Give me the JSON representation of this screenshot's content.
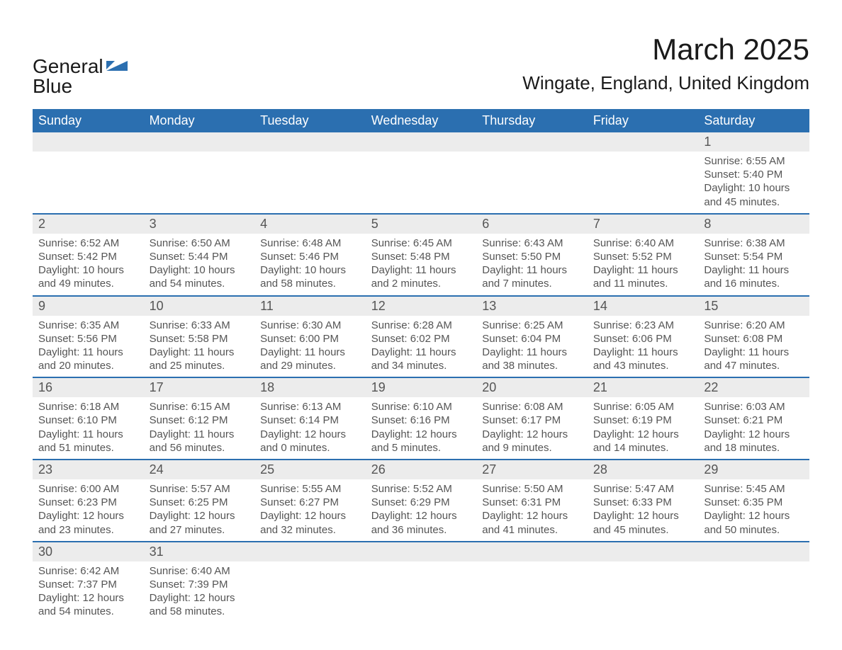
{
  "logo": {
    "word1": "General",
    "word2": "Blue",
    "shape_color": "#2b6fb0",
    "text_color": "#1a1a1a"
  },
  "header": {
    "month_title": "March 2025",
    "location": "Wingate, England, United Kingdom"
  },
  "calendar": {
    "type": "table",
    "header_bg": "#2b6fb0",
    "header_fg": "#ffffff",
    "row_sep_color": "#2b6fb0",
    "daynum_bg": "#ececec",
    "body_bg": "#ffffff",
    "text_color": "#555555",
    "header_fontsize": 18,
    "daynum_fontsize": 18,
    "body_fontsize": 15,
    "columns": [
      "Sunday",
      "Monday",
      "Tuesday",
      "Wednesday",
      "Thursday",
      "Friday",
      "Saturday"
    ],
    "weeks": [
      [
        {
          "day": null
        },
        {
          "day": null
        },
        {
          "day": null
        },
        {
          "day": null
        },
        {
          "day": null
        },
        {
          "day": null
        },
        {
          "day": 1,
          "sunrise": "6:55 AM",
          "sunset": "5:40 PM",
          "daylight": "10 hours and 45 minutes."
        }
      ],
      [
        {
          "day": 2,
          "sunrise": "6:52 AM",
          "sunset": "5:42 PM",
          "daylight": "10 hours and 49 minutes."
        },
        {
          "day": 3,
          "sunrise": "6:50 AM",
          "sunset": "5:44 PM",
          "daylight": "10 hours and 54 minutes."
        },
        {
          "day": 4,
          "sunrise": "6:48 AM",
          "sunset": "5:46 PM",
          "daylight": "10 hours and 58 minutes."
        },
        {
          "day": 5,
          "sunrise": "6:45 AM",
          "sunset": "5:48 PM",
          "daylight": "11 hours and 2 minutes."
        },
        {
          "day": 6,
          "sunrise": "6:43 AM",
          "sunset": "5:50 PM",
          "daylight": "11 hours and 7 minutes."
        },
        {
          "day": 7,
          "sunrise": "6:40 AM",
          "sunset": "5:52 PM",
          "daylight": "11 hours and 11 minutes."
        },
        {
          "day": 8,
          "sunrise": "6:38 AM",
          "sunset": "5:54 PM",
          "daylight": "11 hours and 16 minutes."
        }
      ],
      [
        {
          "day": 9,
          "sunrise": "6:35 AM",
          "sunset": "5:56 PM",
          "daylight": "11 hours and 20 minutes."
        },
        {
          "day": 10,
          "sunrise": "6:33 AM",
          "sunset": "5:58 PM",
          "daylight": "11 hours and 25 minutes."
        },
        {
          "day": 11,
          "sunrise": "6:30 AM",
          "sunset": "6:00 PM",
          "daylight": "11 hours and 29 minutes."
        },
        {
          "day": 12,
          "sunrise": "6:28 AM",
          "sunset": "6:02 PM",
          "daylight": "11 hours and 34 minutes."
        },
        {
          "day": 13,
          "sunrise": "6:25 AM",
          "sunset": "6:04 PM",
          "daylight": "11 hours and 38 minutes."
        },
        {
          "day": 14,
          "sunrise": "6:23 AM",
          "sunset": "6:06 PM",
          "daylight": "11 hours and 43 minutes."
        },
        {
          "day": 15,
          "sunrise": "6:20 AM",
          "sunset": "6:08 PM",
          "daylight": "11 hours and 47 minutes."
        }
      ],
      [
        {
          "day": 16,
          "sunrise": "6:18 AM",
          "sunset": "6:10 PM",
          "daylight": "11 hours and 51 minutes."
        },
        {
          "day": 17,
          "sunrise": "6:15 AM",
          "sunset": "6:12 PM",
          "daylight": "11 hours and 56 minutes."
        },
        {
          "day": 18,
          "sunrise": "6:13 AM",
          "sunset": "6:14 PM",
          "daylight": "12 hours and 0 minutes."
        },
        {
          "day": 19,
          "sunrise": "6:10 AM",
          "sunset": "6:16 PM",
          "daylight": "12 hours and 5 minutes."
        },
        {
          "day": 20,
          "sunrise": "6:08 AM",
          "sunset": "6:17 PM",
          "daylight": "12 hours and 9 minutes."
        },
        {
          "day": 21,
          "sunrise": "6:05 AM",
          "sunset": "6:19 PM",
          "daylight": "12 hours and 14 minutes."
        },
        {
          "day": 22,
          "sunrise": "6:03 AM",
          "sunset": "6:21 PM",
          "daylight": "12 hours and 18 minutes."
        }
      ],
      [
        {
          "day": 23,
          "sunrise": "6:00 AM",
          "sunset": "6:23 PM",
          "daylight": "12 hours and 23 minutes."
        },
        {
          "day": 24,
          "sunrise": "5:57 AM",
          "sunset": "6:25 PM",
          "daylight": "12 hours and 27 minutes."
        },
        {
          "day": 25,
          "sunrise": "5:55 AM",
          "sunset": "6:27 PM",
          "daylight": "12 hours and 32 minutes."
        },
        {
          "day": 26,
          "sunrise": "5:52 AM",
          "sunset": "6:29 PM",
          "daylight": "12 hours and 36 minutes."
        },
        {
          "day": 27,
          "sunrise": "5:50 AM",
          "sunset": "6:31 PM",
          "daylight": "12 hours and 41 minutes."
        },
        {
          "day": 28,
          "sunrise": "5:47 AM",
          "sunset": "6:33 PM",
          "daylight": "12 hours and 45 minutes."
        },
        {
          "day": 29,
          "sunrise": "5:45 AM",
          "sunset": "6:35 PM",
          "daylight": "12 hours and 50 minutes."
        }
      ],
      [
        {
          "day": 30,
          "sunrise": "6:42 AM",
          "sunset": "7:37 PM",
          "daylight": "12 hours and 54 minutes."
        },
        {
          "day": 31,
          "sunrise": "6:40 AM",
          "sunset": "7:39 PM",
          "daylight": "12 hours and 58 minutes."
        },
        {
          "day": null
        },
        {
          "day": null
        },
        {
          "day": null
        },
        {
          "day": null
        },
        {
          "day": null
        }
      ]
    ],
    "labels": {
      "sunrise": "Sunrise:",
      "sunset": "Sunset:",
      "daylight": "Daylight:"
    }
  }
}
